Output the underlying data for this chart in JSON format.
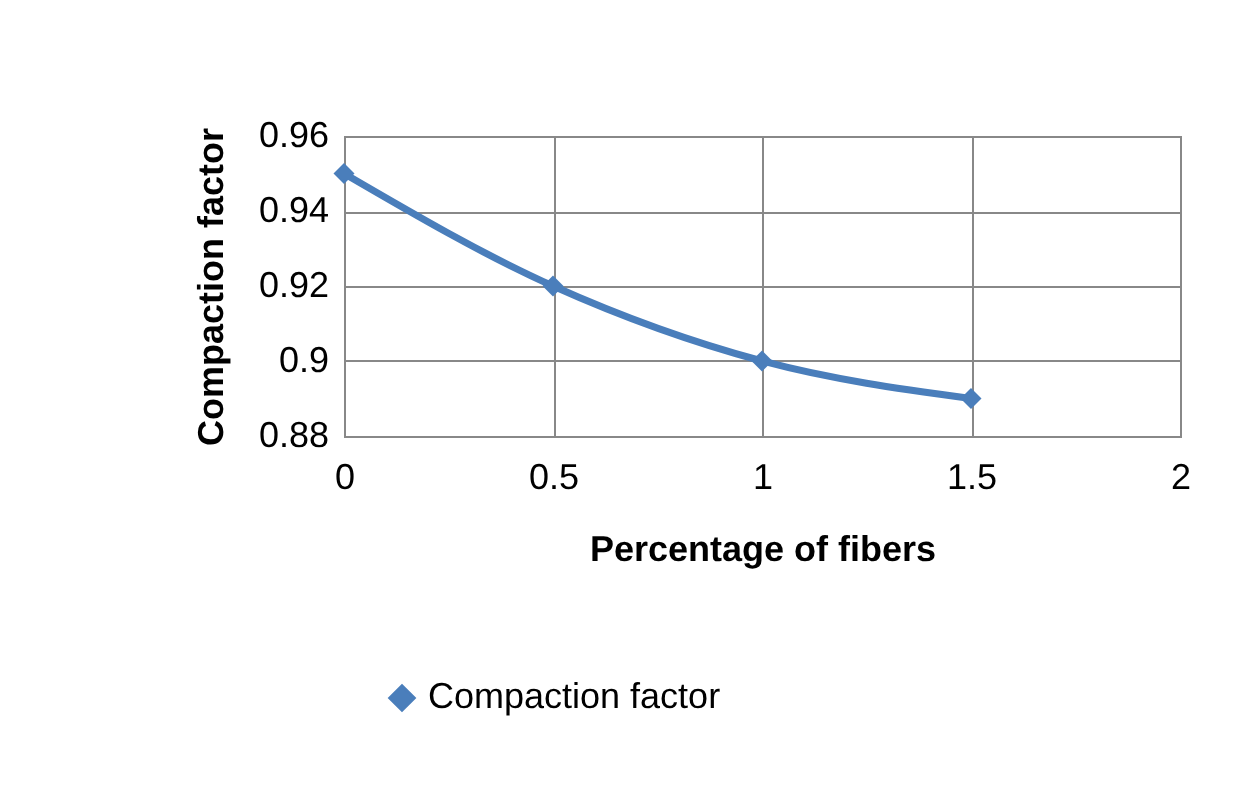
{
  "chart_data": {
    "type": "line",
    "xlabel": "Percentage of fibers",
    "ylabel": "Compaction factor",
    "x": [
      0,
      0.5,
      1,
      1.5
    ],
    "series": [
      {
        "name": "Compaction factor",
        "color": "#4a7ebb",
        "values": [
          0.95,
          0.92,
          0.9,
          0.89
        ]
      }
    ],
    "xlim": [
      0,
      2
    ],
    "xticks": [
      0,
      0.5,
      1,
      1.5,
      2
    ],
    "ylim": [
      0.88,
      0.96
    ],
    "yticks": [
      0.88,
      0.9,
      0.92,
      0.94,
      0.96
    ],
    "grid": true,
    "legend": "bottom",
    "marker": "diamond",
    "line_style": "solid"
  }
}
